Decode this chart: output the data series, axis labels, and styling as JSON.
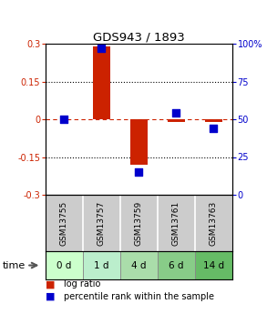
{
  "title": "GDS943 / 1893",
  "samples": [
    "GSM13755",
    "GSM13757",
    "GSM13759",
    "GSM13761",
    "GSM13763"
  ],
  "time_labels": [
    "0 d",
    "1 d",
    "4 d",
    "6 d",
    "14 d"
  ],
  "time_colors": [
    "#ccffcc",
    "#bbeecc",
    "#aaddaa",
    "#88cc88",
    "#66bb66"
  ],
  "log_ratio": [
    0.0,
    0.29,
    -0.18,
    -0.01,
    -0.01
  ],
  "percentile": [
    50.0,
    97.0,
    15.0,
    54.0,
    44.0
  ],
  "bar_color": "#cc2200",
  "dot_color": "#0000cc",
  "sample_bg": "#cccccc",
  "ylim_left": [
    -0.3,
    0.3
  ],
  "ylim_right": [
    0,
    100
  ],
  "yticks_left": [
    -0.3,
    -0.15,
    0,
    0.15,
    0.3
  ],
  "yticks_right": [
    0,
    25,
    50,
    75,
    100
  ],
  "background_color": "#ffffff",
  "bar_width": 0.45,
  "dot_size": 30
}
